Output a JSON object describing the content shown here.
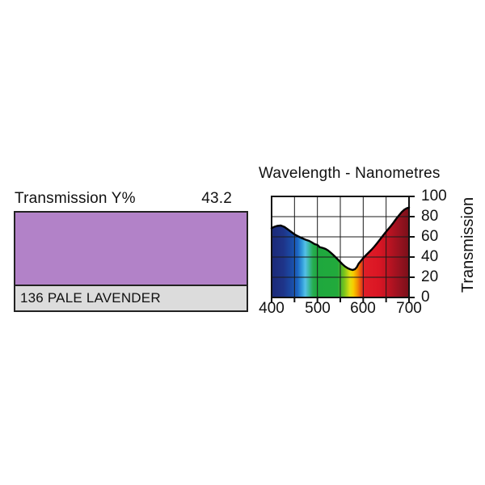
{
  "left_panel": {
    "transmission_label": "Transmission Y%",
    "transmission_value": "43.2",
    "filter_code_name": "136 PALE LAVENDER",
    "swatch_color": "#b282c8",
    "strip_bg": "#dcdcdc"
  },
  "chart": {
    "title": "Wavelength - Nanometres",
    "ylabel": "Transmission",
    "xticks": [
      "400",
      "500",
      "600",
      "700"
    ],
    "yticks": [
      "100",
      "80",
      "60",
      "40",
      "20",
      "0"
    ]
  },
  "chart_data": {
    "type": "area",
    "title": "Wavelength - Nanometres",
    "xlabel": "Wavelength - Nanometres",
    "ylabel": "Transmission",
    "series_name": "136 Pale Lavender spectral transmission %",
    "xlim": [
      400,
      700
    ],
    "ylim": [
      0,
      100
    ],
    "grid": true,
    "x_gridlines_nm": [
      450,
      500,
      550,
      600,
      650
    ],
    "y_gridlines": [
      20,
      40,
      60,
      80
    ],
    "x_ticks_nm": [
      400,
      450,
      500,
      550,
      600,
      650,
      700
    ],
    "y_ticks": [
      0,
      20,
      40,
      60,
      80,
      100
    ],
    "points": [
      [
        400,
        68.5
      ],
      [
        405,
        69.8
      ],
      [
        412,
        70.8
      ],
      [
        420,
        71.2
      ],
      [
        428,
        69.8
      ],
      [
        436,
        67.2
      ],
      [
        444,
        64.5
      ],
      [
        450,
        62.5
      ],
      [
        458,
        60.5
      ],
      [
        466,
        58.8
      ],
      [
        474,
        57.2
      ],
      [
        482,
        56.0
      ],
      [
        488,
        54.5
      ],
      [
        494,
        52.8
      ],
      [
        500,
        52.0
      ],
      [
        505,
        49.8
      ],
      [
        512,
        49.0
      ],
      [
        518,
        48.0
      ],
      [
        524,
        46.3
      ],
      [
        530,
        44.0
      ],
      [
        536,
        41.5
      ],
      [
        542,
        38.8
      ],
      [
        548,
        36.0
      ],
      [
        554,
        33.2
      ],
      [
        560,
        30.8
      ],
      [
        566,
        29.0
      ],
      [
        572,
        27.8
      ],
      [
        577,
        27.2
      ],
      [
        582,
        28.0
      ],
      [
        586,
        30.0
      ],
      [
        590,
        33.5
      ],
      [
        595,
        36.2
      ],
      [
        600,
        39.0
      ],
      [
        606,
        41.8
      ],
      [
        612,
        44.5
      ],
      [
        618,
        47.2
      ],
      [
        624,
        50.2
      ],
      [
        630,
        53.5
      ],
      [
        636,
        57.0
      ],
      [
        642,
        60.5
      ],
      [
        648,
        64.0
      ],
      [
        654,
        67.3
      ],
      [
        660,
        70.5
      ],
      [
        666,
        74.0
      ],
      [
        672,
        77.8
      ],
      [
        678,
        81.2
      ],
      [
        684,
        84.5
      ],
      [
        690,
        87.0
      ],
      [
        695,
        88.3
      ],
      [
        700,
        89.0
      ]
    ],
    "spectrum_gradient": [
      {
        "offset": 0.0,
        "color": "#1b2a78"
      },
      {
        "offset": 0.085,
        "color": "#1e3488"
      },
      {
        "offset": 0.15,
        "color": "#1a4da8"
      },
      {
        "offset": 0.19,
        "color": "#1c66c4"
      },
      {
        "offset": 0.225,
        "color": "#35a0dc"
      },
      {
        "offset": 0.245,
        "color": "#55c0e8"
      },
      {
        "offset": 0.27,
        "color": "#3db8a8"
      },
      {
        "offset": 0.3,
        "color": "#28ae52"
      },
      {
        "offset": 0.33,
        "color": "#1ea83e"
      },
      {
        "offset": 0.48,
        "color": "#22aa3c"
      },
      {
        "offset": 0.53,
        "color": "#7cc41c"
      },
      {
        "offset": 0.57,
        "color": "#e0e010"
      },
      {
        "offset": 0.595,
        "color": "#f8cc00"
      },
      {
        "offset": 0.625,
        "color": "#f29000"
      },
      {
        "offset": 0.65,
        "color": "#e84e14"
      },
      {
        "offset": 0.67,
        "color": "#e01e28"
      },
      {
        "offset": 0.78,
        "color": "#da1624"
      },
      {
        "offset": 0.84,
        "color": "#c21422"
      },
      {
        "offset": 0.92,
        "color": "#9c1220"
      },
      {
        "offset": 1.0,
        "color": "#7a1019"
      }
    ],
    "colors": {
      "grid": "#1a1a1a",
      "frame": "#111111",
      "curve": "#000000",
      "tick": "#111111"
    }
  }
}
